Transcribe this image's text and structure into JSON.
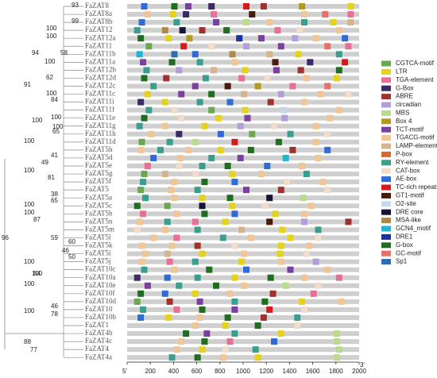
{
  "axis": {
    "start_label": "5'",
    "end_label": "3'",
    "xlim": [
      0,
      2000
    ],
    "xticks": [
      0,
      200,
      400,
      600,
      800,
      1000,
      1200,
      1400,
      1600,
      1800,
      2000
    ]
  },
  "bootstrap": [
    93,
    99,
    100,
    100,
    94,
    58,
    100,
    91,
    62,
    100,
    84,
    100,
    100,
    100,
    65,
    100,
    41,
    49,
    100,
    81,
    38,
    65,
    100,
    100,
    87,
    59,
    60,
    46,
    50,
    100,
    100,
    84,
    100,
    46,
    78,
    100,
    96,
    88,
    77
  ],
  "legend": [
    {
      "name": "CGTCA-motif",
      "color": "#6aa84f"
    },
    {
      "name": "LTR",
      "color": "#e6d21a"
    },
    {
      "name": "TGA-element",
      "color": "#ea6f95"
    },
    {
      "name": "G-Box",
      "color": "#3b2a66"
    },
    {
      "name": "ABRE",
      "color": "#a0322d"
    },
    {
      "name": "circadian",
      "color": "#b49ddb"
    },
    {
      "name": "MBS",
      "color": "#b8db8c"
    },
    {
      "name": "Box 4",
      "color": "#b49a1a"
    },
    {
      "name": "TCT-motif",
      "color": "#7b3f9e"
    },
    {
      "name": "TGACG-motif",
      "color": "#f1c595"
    },
    {
      "name": "LAMP-element",
      "color": "#d8b48c"
    },
    {
      "name": "P-box",
      "color": "#d36a2a"
    },
    {
      "name": "RY-element",
      "color": "#3a9e8f"
    },
    {
      "name": "CAT-box",
      "color": "#f2dccb"
    },
    {
      "name": "AE-box",
      "color": "#2e6bd6"
    },
    {
      "name": "TC-rich repeats",
      "color": "#d7191c"
    },
    {
      "name": "GT1-motif",
      "color": "#4a1a0a"
    },
    {
      "name": "O2-site",
      "color": "#c4d8e8"
    },
    {
      "name": "DRE core",
      "color": "#141433"
    },
    {
      "name": "MSA-like",
      "color": "#b0884a"
    },
    {
      "name": "GCN4_motif",
      "color": "#22b5d3"
    },
    {
      "name": "DRE1",
      "color": "#1a2fa0"
    },
    {
      "name": "G-box",
      "color": "#1f6e1f"
    },
    {
      "name": "GC-motif",
      "color": "#e8706a"
    },
    {
      "name": "Sp1",
      "color": "#2f6db0"
    }
  ],
  "genes": [
    {
      "name": "FaZAT8",
      "motifs": [
        [
          120,
          14
        ],
        [
          380,
          22
        ],
        [
          500,
          8
        ],
        [
          700,
          3
        ],
        [
          1000,
          15
        ],
        [
          1150,
          4
        ],
        [
          1480,
          7
        ],
        [
          1900,
          1
        ]
      ]
    },
    {
      "name": "FaZAT8a",
      "motifs": [
        [
          150,
          9
        ],
        [
          370,
          1
        ],
        [
          480,
          3
        ],
        [
          720,
          2
        ],
        [
          1050,
          16
        ],
        [
          1500,
          9
        ],
        [
          1680,
          23
        ],
        [
          1900,
          2
        ]
      ]
    },
    {
      "name": "FaZAT8b",
      "motifs": [
        [
          100,
          14
        ],
        [
          400,
          12
        ],
        [
          740,
          8
        ],
        [
          1000,
          6
        ],
        [
          1200,
          9
        ],
        [
          1500,
          12
        ],
        [
          1750,
          1
        ],
        [
          1900,
          10
        ]
      ]
    },
    {
      "name": "FaZAT12",
      "motifs": [
        [
          60,
          12
        ],
        [
          300,
          19
        ],
        [
          450,
          18
        ],
        [
          620,
          4
        ],
        [
          830,
          22
        ],
        [
          1270,
          2
        ],
        [
          1460,
          13
        ],
        [
          1800,
          9
        ]
      ]
    },
    {
      "name": "FaZAT12a",
      "motifs": [
        [
          90,
          22
        ],
        [
          330,
          1
        ],
        [
          510,
          7
        ],
        [
          940,
          21
        ],
        [
          1130,
          8
        ],
        [
          1420,
          5
        ],
        [
          1600,
          9
        ],
        [
          1850,
          14
        ]
      ]
    },
    {
      "name": "FaZAT11",
      "motifs": [
        [
          160,
          0
        ],
        [
          460,
          15
        ],
        [
          700,
          13
        ],
        [
          1000,
          5
        ],
        [
          1300,
          8
        ],
        [
          1700,
          23
        ],
        [
          1880,
          2
        ]
      ]
    },
    {
      "name": "FaZAT11b",
      "motifs": [
        [
          80,
          20
        ],
        [
          380,
          24
        ],
        [
          560,
          14
        ],
        [
          880,
          19
        ],
        [
          1200,
          10
        ],
        [
          1450,
          1
        ],
        [
          1800,
          12
        ]
      ]
    },
    {
      "name": "FaZAT11a",
      "motifs": [
        [
          110,
          8
        ],
        [
          360,
          22
        ],
        [
          600,
          12
        ],
        [
          900,
          9
        ],
        [
          1250,
          16
        ],
        [
          1550,
          3
        ],
        [
          1850,
          15
        ]
      ]
    },
    {
      "name": "FaZAT12b",
      "motifs": [
        [
          140,
          12
        ],
        [
          420,
          5
        ],
        [
          720,
          10
        ],
        [
          990,
          1
        ],
        [
          1260,
          8
        ],
        [
          1470,
          4
        ],
        [
          1800,
          22
        ]
      ]
    },
    {
      "name": "FaZAT12d",
      "motifs": [
        [
          120,
          22
        ],
        [
          310,
          4
        ],
        [
          650,
          12
        ],
        [
          960,
          2
        ],
        [
          1180,
          13
        ],
        [
          1520,
          9
        ],
        [
          1780,
          1
        ]
      ]
    },
    {
      "name": "FaZAT12c",
      "motifs": [
        [
          200,
          12
        ],
        [
          560,
          8
        ],
        [
          840,
          16
        ],
        [
          1100,
          7
        ],
        [
          1400,
          2
        ],
        [
          1700,
          23
        ]
      ]
    },
    {
      "name": "FaZAT11c",
      "motifs": [
        [
          150,
          1
        ],
        [
          440,
          8
        ],
        [
          700,
          22
        ],
        [
          980,
          10
        ],
        [
          1300,
          5
        ],
        [
          1640,
          9
        ],
        [
          1880,
          13
        ]
      ]
    },
    {
      "name": "FaZAT11i",
      "motifs": [
        [
          90,
          3
        ],
        [
          300,
          1
        ],
        [
          600,
          12
        ],
        [
          860,
          14
        ],
        [
          1210,
          4
        ],
        [
          1500,
          9
        ]
      ]
    },
    {
      "name": "FaZAT11f",
      "motifs": [
        [
          160,
          12
        ],
        [
          380,
          13
        ],
        [
          700,
          0
        ],
        [
          990,
          1
        ],
        [
          1320,
          17
        ],
        [
          1800,
          9
        ]
      ]
    },
    {
      "name": "FaZAT11e",
      "motifs": [
        [
          120,
          22
        ],
        [
          440,
          13
        ],
        [
          760,
          1
        ],
        [
          1010,
          8
        ],
        [
          1330,
          5
        ],
        [
          1720,
          9
        ]
      ]
    },
    {
      "name": "FaZAT11g",
      "motifs": [
        [
          80,
          12
        ],
        [
          300,
          9
        ],
        [
          640,
          1
        ],
        [
          950,
          5
        ],
        [
          1240,
          13
        ],
        [
          1600,
          9
        ]
      ]
    },
    {
      "name": "FaZAT11h",
      "motifs": [
        [
          180,
          9
        ],
        [
          420,
          3
        ],
        [
          780,
          14
        ],
        [
          1050,
          0
        ],
        [
          1380,
          12
        ],
        [
          1700,
          13
        ]
      ]
    },
    {
      "name": "FaZAT11d",
      "motifs": [
        [
          100,
          0
        ],
        [
          340,
          12
        ],
        [
          560,
          6
        ],
        [
          900,
          15
        ],
        [
          1280,
          22
        ],
        [
          1600,
          9
        ]
      ]
    },
    {
      "name": "FaZAT5h",
      "motifs": [
        [
          90,
          9
        ],
        [
          260,
          12
        ],
        [
          500,
          9
        ],
        [
          780,
          1
        ],
        [
          1040,
          22
        ],
        [
          1400,
          4
        ],
        [
          1700,
          14
        ]
      ]
    },
    {
      "name": "FaZAT5d",
      "motifs": [
        [
          200,
          14
        ],
        [
          430,
          9
        ],
        [
          700,
          12
        ],
        [
          950,
          8
        ],
        [
          1340,
          20
        ],
        [
          1620,
          9
        ]
      ]
    },
    {
      "name": "FaZAT5e",
      "motifs": [
        [
          150,
          2
        ],
        [
          420,
          13
        ],
        [
          620,
          12
        ],
        [
          840,
          22
        ],
        [
          1180,
          14
        ],
        [
          1480,
          9
        ]
      ]
    },
    {
      "name": "FaZAT5g",
      "motifs": [
        [
          120,
          0
        ],
        [
          300,
          10
        ],
        [
          560,
          13
        ],
        [
          880,
          1
        ],
        [
          1130,
          9
        ],
        [
          1520,
          12
        ]
      ]
    },
    {
      "name": "FaZAT5f",
      "motifs": [
        [
          110,
          12
        ],
        [
          380,
          9
        ],
        [
          640,
          22
        ],
        [
          900,
          14
        ],
        [
          1350,
          13
        ],
        [
          1660,
          9
        ]
      ]
    },
    {
      "name": "FaZAT5",
      "motifs": [
        [
          90,
          0
        ],
        [
          350,
          9
        ],
        [
          580,
          12
        ],
        [
          1000,
          8
        ],
        [
          1300,
          4
        ],
        [
          1700,
          13
        ]
      ]
    },
    {
      "name": "FaZAT5a",
      "motifs": [
        [
          130,
          12
        ],
        [
          380,
          9
        ],
        [
          620,
          1
        ],
        [
          860,
          22
        ],
        [
          1200,
          18
        ],
        [
          1490,
          6
        ]
      ]
    },
    {
      "name": "FaZAT5c",
      "motifs": [
        [
          60,
          22
        ],
        [
          320,
          0
        ],
        [
          620,
          18
        ],
        [
          880,
          1
        ],
        [
          1160,
          13
        ],
        [
          1560,
          9
        ]
      ]
    },
    {
      "name": "FaZAT5b",
      "motifs": [
        [
          110,
          2
        ],
        [
          400,
          9
        ],
        [
          640,
          22
        ],
        [
          900,
          14
        ],
        [
          1250,
          1
        ],
        [
          1500,
          9
        ]
      ]
    },
    {
      "name": "FaZAT5n",
      "motifs": [
        [
          80,
          9
        ],
        [
          320,
          12
        ],
        [
          560,
          2
        ],
        [
          820,
          1
        ],
        [
          1200,
          16
        ],
        [
          1500,
          5
        ],
        [
          1880,
          4
        ]
      ]
    },
    {
      "name": "FaZAT5m",
      "motifs": [
        [
          60,
          13
        ],
        [
          300,
          9
        ],
        [
          580,
          12
        ],
        [
          960,
          10
        ],
        [
          1310,
          1
        ],
        [
          1620,
          12
        ]
      ]
    },
    {
      "name": "FaZAT5l",
      "motifs": [
        [
          200,
          9
        ],
        [
          400,
          2
        ],
        [
          800,
          12
        ],
        [
          1040,
          9
        ],
        [
          1380,
          1
        ],
        [
          1620,
          13
        ]
      ]
    },
    {
      "name": "FaZAT5k",
      "motifs": [
        [
          100,
          9
        ],
        [
          360,
          9
        ],
        [
          580,
          4
        ],
        [
          900,
          13
        ],
        [
          1300,
          1
        ],
        [
          1540,
          9
        ]
      ]
    },
    {
      "name": "FaZAT5i",
      "motifs": [
        [
          130,
          9
        ],
        [
          320,
          10
        ],
        [
          620,
          1
        ],
        [
          980,
          9
        ],
        [
          1290,
          1
        ],
        [
          1520,
          13
        ]
      ]
    },
    {
      "name": "FaZAT5j",
      "motifs": [
        [
          100,
          9
        ],
        [
          340,
          2
        ],
        [
          560,
          12
        ],
        [
          960,
          1
        ],
        [
          1300,
          9
        ],
        [
          1600,
          5
        ]
      ]
    },
    {
      "name": "FaZAT10c",
      "motifs": [
        [
          120,
          12
        ],
        [
          380,
          9
        ],
        [
          680,
          22
        ],
        [
          1000,
          14
        ],
        [
          1380,
          8
        ],
        [
          1700,
          9
        ]
      ]
    },
    {
      "name": "FaZAT10a",
      "motifs": [
        [
          60,
          3
        ],
        [
          320,
          14
        ],
        [
          580,
          12
        ],
        [
          900,
          1
        ],
        [
          1210,
          22
        ],
        [
          1500,
          9
        ],
        [
          1800,
          2
        ]
      ]
    },
    {
      "name": "FaZAT10e",
      "motifs": [
        [
          150,
          8
        ],
        [
          420,
          12
        ],
        [
          740,
          22
        ],
        [
          980,
          9
        ],
        [
          1340,
          6
        ],
        [
          1620,
          13
        ]
      ]
    },
    {
      "name": "FaZAT10f",
      "motifs": [
        [
          90,
          22
        ],
        [
          300,
          14
        ],
        [
          560,
          1
        ],
        [
          860,
          9
        ],
        [
          1230,
          4
        ],
        [
          1580,
          2
        ]
      ]
    },
    {
      "name": "FaZAT10d",
      "motifs": [
        [
          60,
          0
        ],
        [
          340,
          4
        ],
        [
          600,
          8
        ],
        [
          900,
          12
        ],
        [
          1160,
          22
        ],
        [
          1480,
          1
        ],
        [
          1820,
          9
        ]
      ]
    },
    {
      "name": "FaZAT10",
      "motifs": [
        [
          110,
          12
        ],
        [
          400,
          2
        ],
        [
          620,
          22
        ],
        [
          900,
          8
        ],
        [
          1200,
          15
        ],
        [
          1500,
          13
        ]
      ]
    },
    {
      "name": "FaZAT10b",
      "motifs": [
        [
          90,
          14
        ],
        [
          330,
          1
        ],
        [
          600,
          9
        ],
        [
          840,
          22
        ],
        [
          1150,
          4
        ],
        [
          1440,
          12
        ]
      ]
    },
    {
      "name": "FaZAT1",
      "motifs": [
        [
          560,
          9
        ],
        [
          820,
          1
        ],
        [
          1100,
          22
        ],
        [
          1440,
          13
        ]
      ]
    },
    {
      "name": "FaZAT4b",
      "motifs": [
        [
          480,
          22
        ],
        [
          660,
          8
        ],
        [
          900,
          12
        ],
        [
          1300,
          1
        ],
        [
          1780,
          6
        ]
      ]
    },
    {
      "name": "FaZAT4c",
      "motifs": [
        [
          440,
          9
        ],
        [
          640,
          22
        ],
        [
          860,
          2
        ],
        [
          1240,
          14
        ],
        [
          1780,
          6
        ]
      ]
    },
    {
      "name": "FaZAT4",
      "motifs": [
        [
          400,
          9
        ],
        [
          620,
          1
        ],
        [
          820,
          13
        ],
        [
          1080,
          12
        ],
        [
          1800,
          6
        ]
      ]
    },
    {
      "name": "FaZAT4a",
      "motifs": [
        [
          360,
          12
        ],
        [
          580,
          22
        ],
        [
          800,
          9
        ],
        [
          1100,
          1
        ],
        [
          1780,
          6
        ]
      ]
    }
  ]
}
